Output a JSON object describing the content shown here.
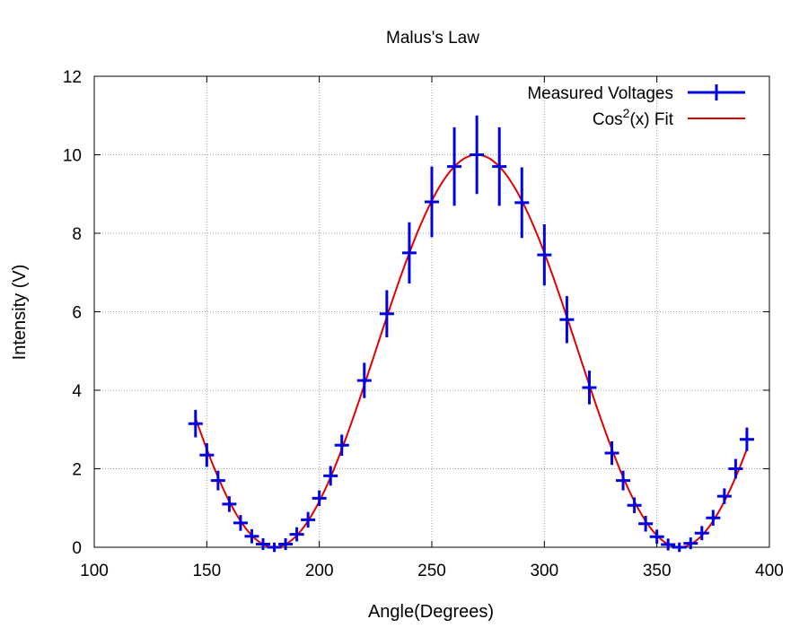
{
  "chart_data": {
    "type": "line",
    "title": "Malus's Law",
    "xlabel": "Angle(Degrees)",
    "ylabel": "Intensity (V)",
    "xlim": [
      100,
      400
    ],
    "ylim": [
      0,
      12
    ],
    "xticks": [
      100,
      150,
      200,
      250,
      300,
      350,
      400
    ],
    "yticks": [
      0,
      2,
      4,
      6,
      8,
      10,
      12
    ],
    "grid": true,
    "legend_position": "top-right",
    "series": [
      {
        "name": "Measured Voltages",
        "kind": "errorbar",
        "color": "#0000e0",
        "x": [
          145,
          150,
          155,
          160,
          165,
          170,
          175,
          180,
          185,
          190,
          195,
          200,
          205,
          210,
          220,
          230,
          240,
          250,
          260,
          270,
          280,
          290,
          300,
          310,
          320,
          330,
          335,
          340,
          345,
          350,
          355,
          360,
          365,
          370,
          375,
          380,
          385,
          390
        ],
        "y": [
          3.15,
          2.35,
          1.7,
          1.1,
          0.62,
          0.28,
          0.08,
          0.0,
          0.08,
          0.33,
          0.7,
          1.25,
          1.82,
          2.6,
          4.25,
          5.95,
          7.5,
          8.8,
          9.7,
          10.0,
          9.7,
          8.78,
          7.45,
          5.8,
          4.07,
          2.4,
          1.7,
          1.07,
          0.6,
          0.27,
          0.07,
          0.0,
          0.1,
          0.36,
          0.75,
          1.3,
          2.0,
          2.75
        ],
        "yerr": [
          0.35,
          0.3,
          0.25,
          0.2,
          0.2,
          0.18,
          0.15,
          0.12,
          0.15,
          0.18,
          0.2,
          0.2,
          0.25,
          0.27,
          0.45,
          0.6,
          0.78,
          0.9,
          1.0,
          1.0,
          1.0,
          0.9,
          0.78,
          0.6,
          0.43,
          0.3,
          0.25,
          0.2,
          0.2,
          0.18,
          0.15,
          0.12,
          0.15,
          0.18,
          0.2,
          0.2,
          0.25,
          0.3
        ]
      },
      {
        "name": "Cos²(x) Fit",
        "name_parts": [
          "Cos",
          "2",
          "(x) Fit"
        ],
        "kind": "curve",
        "color": "#e00000",
        "function": "10*cos^2(x - 270°)",
        "amplitude": 10,
        "phase_deg": 270,
        "x_range": [
          145,
          390
        ]
      }
    ]
  }
}
